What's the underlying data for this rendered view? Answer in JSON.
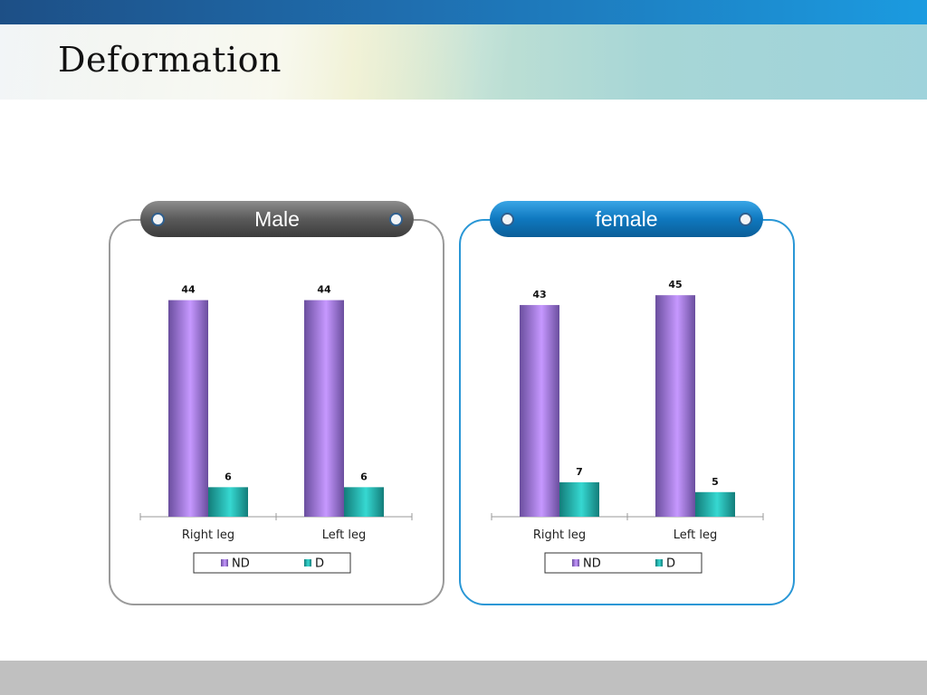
{
  "slide": {
    "title": "Deformation"
  },
  "colors": {
    "nd": "#b98ff5",
    "d": "#2cc5c0",
    "male_border": "#9a9a9a",
    "female_border": "#2a97d6"
  },
  "chart_data": [
    {
      "type": "bar",
      "title": "Male",
      "categories": [
        "Right leg",
        "Left leg"
      ],
      "series": [
        {
          "name": "ND",
          "values": [
            44,
            44
          ]
        },
        {
          "name": "D",
          "values": [
            6,
            6
          ]
        }
      ],
      "ylim": [
        0,
        50
      ],
      "grid": false,
      "legend": "bottom"
    },
    {
      "type": "bar",
      "title": "female",
      "categories": [
        "Right leg",
        "Left leg"
      ],
      "series": [
        {
          "name": "ND",
          "values": [
            43,
            45
          ]
        },
        {
          "name": "D",
          "values": [
            7,
            5
          ]
        }
      ],
      "ylim": [
        0,
        50
      ],
      "grid": false,
      "legend": "bottom"
    }
  ]
}
